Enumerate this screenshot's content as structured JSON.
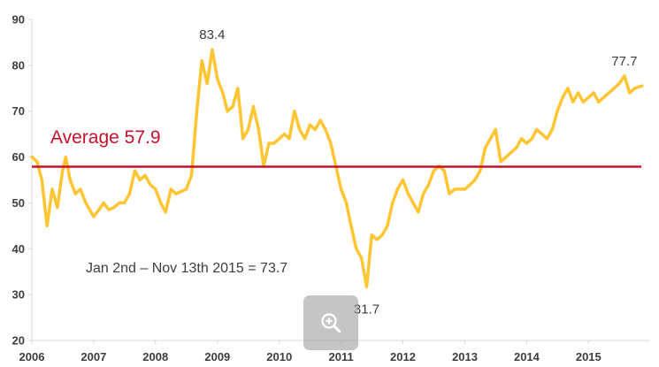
{
  "chart_data": {
    "type": "line",
    "title": "",
    "xlabel": "",
    "ylabel": "",
    "ylim": [
      20,
      90
    ],
    "xlim": [
      "2006-01-01",
      "2015-12-31"
    ],
    "y_ticks": [
      "20",
      "30",
      "40",
      "50",
      "60",
      "70",
      "80",
      "90"
    ],
    "x_ticks": [
      "2006",
      "2007",
      "2008",
      "2009",
      "2010",
      "2011",
      "2012",
      "2013",
      "2014",
      "2015"
    ],
    "grid": false,
    "series": [
      {
        "color": "#ffc533",
        "points": [
          [
            "2006-01-02",
            60.0
          ],
          [
            "2006-02-01",
            59.0
          ],
          [
            "2006-03-01",
            55.0
          ],
          [
            "2006-04-01",
            45.0
          ],
          [
            "2006-05-01",
            53.0
          ],
          [
            "2006-06-01",
            49.0
          ],
          [
            "2006-07-01",
            57.0
          ],
          [
            "2006-07-20",
            60.0
          ],
          [
            "2006-08-15",
            55.0
          ],
          [
            "2006-09-15",
            52.0
          ],
          [
            "2006-10-15",
            53.0
          ],
          [
            "2006-11-15",
            50.0
          ],
          [
            "2007-01-01",
            47.0
          ],
          [
            "2007-02-01",
            48.5
          ],
          [
            "2007-03-01",
            50.0
          ],
          [
            "2007-04-01",
            48.5
          ],
          [
            "2007-05-01",
            49.0
          ],
          [
            "2007-06-01",
            50.0
          ],
          [
            "2007-07-01",
            50.0
          ],
          [
            "2007-08-01",
            52.0
          ],
          [
            "2007-09-01",
            57.0
          ],
          [
            "2007-10-01",
            55.0
          ],
          [
            "2007-11-01",
            56.0
          ],
          [
            "2007-12-01",
            54.0
          ],
          [
            "2008-01-01",
            53.0
          ],
          [
            "2008-02-01",
            50.0
          ],
          [
            "2008-03-01",
            48.0
          ],
          [
            "2008-04-01",
            53.0
          ],
          [
            "2008-05-01",
            52.0
          ],
          [
            "2008-06-01",
            52.5
          ],
          [
            "2008-07-01",
            53.0
          ],
          [
            "2008-08-01",
            56.0
          ],
          [
            "2008-09-01",
            70.0
          ],
          [
            "2008-10-01",
            81.0
          ],
          [
            "2008-11-01",
            76.0
          ],
          [
            "2008-12-01",
            83.4
          ],
          [
            "2009-01-01",
            77.0
          ],
          [
            "2009-02-01",
            74.0
          ],
          [
            "2009-03-01",
            70.0
          ],
          [
            "2009-04-01",
            71.0
          ],
          [
            "2009-05-01",
            75.0
          ],
          [
            "2009-06-01",
            64.0
          ],
          [
            "2009-07-01",
            66.0
          ],
          [
            "2009-08-01",
            71.0
          ],
          [
            "2009-09-01",
            66.0
          ],
          [
            "2009-10-01",
            58.0
          ],
          [
            "2009-11-01",
            63.0
          ],
          [
            "2009-12-01",
            63.0
          ],
          [
            "2010-01-01",
            64.0
          ],
          [
            "2010-02-01",
            65.0
          ],
          [
            "2010-03-01",
            64.0
          ],
          [
            "2010-04-01",
            70.0
          ],
          [
            "2010-05-01",
            66.0
          ],
          [
            "2010-06-01",
            64.0
          ],
          [
            "2010-07-01",
            67.0
          ],
          [
            "2010-08-01",
            66.0
          ],
          [
            "2010-09-01",
            68.0
          ],
          [
            "2010-10-01",
            66.0
          ],
          [
            "2010-11-01",
            63.0
          ],
          [
            "2010-12-01",
            58.0
          ],
          [
            "2011-01-01",
            53.0
          ],
          [
            "2011-02-01",
            50.0
          ],
          [
            "2011-03-01",
            45.0
          ],
          [
            "2011-04-01",
            40.0
          ],
          [
            "2011-05-01",
            38.0
          ],
          [
            "2011-06-01",
            31.7
          ],
          [
            "2011-07-01",
            43.0
          ],
          [
            "2011-08-01",
            42.0
          ],
          [
            "2011-09-01",
            43.0
          ],
          [
            "2011-10-01",
            45.0
          ],
          [
            "2011-11-01",
            50.0
          ],
          [
            "2011-12-01",
            53.0
          ],
          [
            "2012-01-01",
            55.0
          ],
          [
            "2012-02-01",
            52.0
          ],
          [
            "2012-03-01",
            50.0
          ],
          [
            "2012-04-01",
            48.0
          ],
          [
            "2012-05-01",
            52.0
          ],
          [
            "2012-06-01",
            54.0
          ],
          [
            "2012-07-01",
            57.0
          ],
          [
            "2012-08-01",
            58.0
          ],
          [
            "2012-09-01",
            57.0
          ],
          [
            "2012-10-01",
            52.0
          ],
          [
            "2012-11-01",
            53.0
          ],
          [
            "2012-12-01",
            53.0
          ],
          [
            "2013-01-01",
            53.0
          ],
          [
            "2013-02-01",
            54.0
          ],
          [
            "2013-03-01",
            55.0
          ],
          [
            "2013-04-01",
            57.0
          ],
          [
            "2013-05-01",
            62.0
          ],
          [
            "2013-06-01",
            64.0
          ],
          [
            "2013-07-01",
            66.0
          ],
          [
            "2013-08-01",
            59.0
          ],
          [
            "2013-09-01",
            60.0
          ],
          [
            "2013-10-01",
            61.0
          ],
          [
            "2013-11-01",
            62.0
          ],
          [
            "2013-12-01",
            64.0
          ],
          [
            "2014-01-01",
            63.0
          ],
          [
            "2014-02-01",
            64.0
          ],
          [
            "2014-03-01",
            66.0
          ],
          [
            "2014-04-01",
            65.0
          ],
          [
            "2014-05-01",
            64.0
          ],
          [
            "2014-06-01",
            66.0
          ],
          [
            "2014-07-01",
            70.0
          ],
          [
            "2014-08-01",
            73.0
          ],
          [
            "2014-09-01",
            75.0
          ],
          [
            "2014-10-01",
            72.0
          ],
          [
            "2014-11-01",
            74.0
          ],
          [
            "2014-12-01",
            72.0
          ],
          [
            "2015-01-01",
            73.0
          ],
          [
            "2015-02-01",
            74.0
          ],
          [
            "2015-03-01",
            72.0
          ],
          [
            "2015-04-01",
            73.0
          ],
          [
            "2015-05-01",
            74.0
          ],
          [
            "2015-06-01",
            75.0
          ],
          [
            "2015-07-01",
            76.0
          ],
          [
            "2015-08-01",
            77.7
          ],
          [
            "2015-09-01",
            74.0
          ],
          [
            "2015-10-01",
            75.0
          ],
          [
            "2015-11-13",
            75.5
          ]
        ]
      }
    ],
    "average": {
      "value": 57.9,
      "label": "Average 57.9",
      "color": "#c8102e"
    },
    "annotations": [
      {
        "text": "83.4",
        "x": "2008-12-01",
        "y": 83.4,
        "position": "above"
      },
      {
        "text": "31.7",
        "x": "2011-06-01",
        "y": 31.7,
        "position": "below"
      },
      {
        "text": "77.7",
        "x": "2015-08-01",
        "y": 77.7,
        "position": "above"
      }
    ],
    "note": "Jan 2nd – Nov 13th 2015 = 73.7"
  },
  "zoom_icon": "zoom-in-icon"
}
